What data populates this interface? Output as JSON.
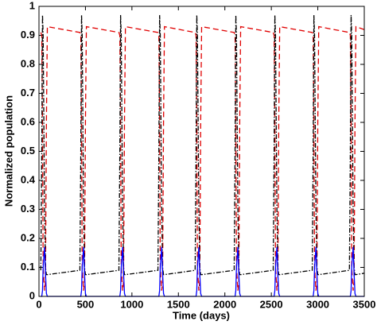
{
  "chart_data": {
    "type": "line",
    "xlabel": "Time (days)",
    "ylabel": "Normalized population",
    "xlim": [
      0,
      3500
    ],
    "ylim": [
      0,
      1
    ],
    "xticks": [
      0,
      500,
      1000,
      1500,
      2000,
      2500,
      3000,
      3500
    ],
    "yticks": [
      0,
      0.1,
      0.2,
      0.3,
      0.4,
      0.5,
      0.6,
      0.7,
      0.8,
      0.9,
      1
    ],
    "grid": false,
    "x": [
      20,
      30,
      38,
      45,
      60,
      70,
      80,
      90,
      440,
      450,
      458,
      465,
      480,
      490,
      500,
      510,
      860,
      870,
      878,
      885,
      900,
      910,
      920,
      930,
      1280,
      1290,
      1298,
      1305,
      1320,
      1330,
      1340,
      1350,
      1680,
      1690,
      1698,
      1705,
      1720,
      1730,
      1740,
      1750,
      2100,
      2110,
      2118,
      2125,
      2140,
      2150,
      2160,
      2170,
      2520,
      2530,
      2538,
      2545,
      2560,
      2570,
      2580,
      2590,
      2940,
      2950,
      2958,
      2965,
      2980,
      2990,
      3000,
      3010,
      3340,
      3350,
      3358,
      3365,
      3380,
      3390,
      3400,
      3410,
      3500
    ],
    "series": [
      {
        "color": "#e00000",
        "dash": "7,4",
        "values": [
          0.91,
          0.9,
          0.6,
          0.1,
          0.02,
          0.05,
          0.6,
          0.93,
          0.91,
          0.9,
          0.6,
          0.1,
          0.02,
          0.05,
          0.6,
          0.93,
          0.91,
          0.9,
          0.6,
          0.1,
          0.02,
          0.05,
          0.6,
          0.93,
          0.91,
          0.9,
          0.6,
          0.1,
          0.02,
          0.05,
          0.6,
          0.93,
          0.91,
          0.9,
          0.6,
          0.1,
          0.02,
          0.05,
          0.6,
          0.93,
          0.91,
          0.9,
          0.6,
          0.1,
          0.02,
          0.05,
          0.6,
          0.93,
          0.91,
          0.9,
          0.6,
          0.1,
          0.02,
          0.05,
          0.6,
          0.93,
          0.91,
          0.9,
          0.6,
          0.1,
          0.02,
          0.05,
          0.6,
          0.93,
          0.91,
          0.9,
          0.6,
          0.1,
          0.02,
          0.05,
          0.6,
          0.93,
          0.92
        ]
      },
      {
        "color": "#000000",
        "dash": "6,2,1.5,2",
        "values": [
          0.09,
          0.5,
          0.97,
          0.9,
          0.3,
          0.1,
          0.075,
          0.075,
          0.09,
          0.5,
          0.97,
          0.9,
          0.3,
          0.1,
          0.075,
          0.075,
          0.09,
          0.5,
          0.97,
          0.9,
          0.3,
          0.1,
          0.075,
          0.075,
          0.09,
          0.5,
          0.97,
          0.9,
          0.3,
          0.1,
          0.075,
          0.075,
          0.09,
          0.5,
          0.97,
          0.9,
          0.3,
          0.1,
          0.075,
          0.075,
          0.09,
          0.5,
          0.97,
          0.9,
          0.3,
          0.1,
          0.075,
          0.075,
          0.09,
          0.5,
          0.97,
          0.9,
          0.3,
          0.1,
          0.075,
          0.075,
          0.09,
          0.5,
          0.97,
          0.9,
          0.3,
          0.1,
          0.075,
          0.075,
          0.09,
          0.5,
          0.97,
          0.9,
          0.3,
          0.1,
          0.075,
          0.075,
          0.08
        ]
      },
      {
        "color": "#0000ff",
        "dash": "none",
        "values": [
          0,
          0,
          0.02,
          0.1,
          0.17,
          0.08,
          0.01,
          0,
          0,
          0,
          0.02,
          0.1,
          0.17,
          0.08,
          0.01,
          0,
          0,
          0,
          0.02,
          0.1,
          0.17,
          0.08,
          0.01,
          0,
          0,
          0,
          0.02,
          0.1,
          0.17,
          0.08,
          0.01,
          0,
          0,
          0,
          0.02,
          0.1,
          0.17,
          0.08,
          0.01,
          0,
          0,
          0,
          0.02,
          0.1,
          0.17,
          0.08,
          0.01,
          0,
          0,
          0,
          0.02,
          0.1,
          0.17,
          0.08,
          0.01,
          0,
          0,
          0,
          0.02,
          0.1,
          0.17,
          0.08,
          0.01,
          0,
          0,
          0,
          0.02,
          0.1,
          0.17,
          0.08,
          0.01,
          0,
          0
        ]
      }
    ]
  }
}
